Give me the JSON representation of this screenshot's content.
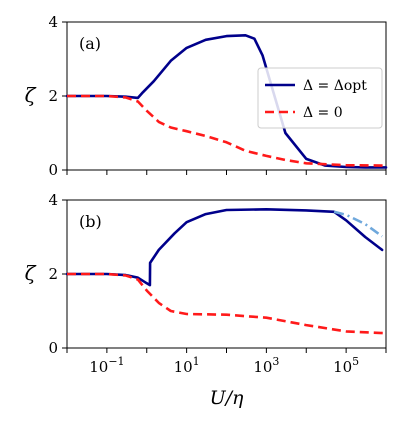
{
  "chart_data": [
    {
      "type": "line",
      "panel_label": "(a)",
      "ylabel": "ζ",
      "xlabel": "",
      "x_scale": "log",
      "xlim": [
        0.01,
        1000000
      ],
      "ylim": [
        0,
        4
      ],
      "yticks": [
        "0",
        "2",
        "4"
      ],
      "legend_position": "center-right",
      "series": [
        {
          "name": "Δ = Δopt",
          "color": "#00008b",
          "style": "solid",
          "x": [
            0.01,
            0.1,
            0.3,
            0.6,
            0.8,
            1.5,
            4,
            10,
            30,
            100,
            300,
            500,
            800,
            1500,
            3000,
            10000,
            30000,
            100000,
            300000,
            1000000
          ],
          "y": [
            2.0,
            2.0,
            1.98,
            1.95,
            2.1,
            2.4,
            2.95,
            3.3,
            3.52,
            3.62,
            3.64,
            3.55,
            3.1,
            2.1,
            1.0,
            0.3,
            0.12,
            0.08,
            0.07,
            0.07
          ]
        },
        {
          "name": "Δ = 0",
          "color": "#ff1a1a",
          "style": "dashed",
          "x": [
            0.01,
            0.1,
            0.3,
            0.6,
            1,
            2,
            4,
            10,
            30,
            100,
            300,
            1000,
            3000,
            10000,
            100000,
            1000000
          ],
          "y": [
            2.0,
            2.0,
            1.96,
            1.85,
            1.6,
            1.3,
            1.15,
            1.05,
            0.92,
            0.75,
            0.52,
            0.38,
            0.27,
            0.18,
            0.13,
            0.12
          ]
        }
      ]
    },
    {
      "type": "line",
      "panel_label": "(b)",
      "ylabel": "ζ",
      "xlabel": "U/η",
      "x_scale": "log",
      "xlim": [
        0.01,
        1000000
      ],
      "ylim": [
        0,
        4
      ],
      "yticks": [
        "0",
        "2",
        "4"
      ],
      "xticks": [
        "10−1",
        "101",
        "103",
        "105"
      ],
      "series": [
        {
          "color": "#00008b",
          "style": "solid",
          "x": [
            0.01,
            0.1,
            0.3,
            0.6,
            1.0,
            1.2,
            1.21,
            2,
            5,
            10,
            30,
            100,
            1000,
            10000,
            50000,
            100000,
            300000,
            800000
          ],
          "y": [
            2.0,
            2.0,
            1.97,
            1.9,
            1.75,
            1.7,
            2.3,
            2.65,
            3.1,
            3.4,
            3.62,
            3.73,
            3.75,
            3.72,
            3.68,
            3.45,
            3.0,
            2.65
          ]
        },
        {
          "color": "#6fa8dc",
          "style": "dashdot",
          "x": [
            50000,
            100000,
            300000,
            800000
          ],
          "y": [
            3.68,
            3.6,
            3.35,
            3.02
          ]
        },
        {
          "color": "#ff1a1a",
          "style": "dashed",
          "x": [
            0.01,
            0.1,
            0.3,
            0.6,
            1,
            2,
            4,
            10,
            100,
            1000,
            10000,
            100000,
            1000000
          ],
          "y": [
            2.0,
            2.0,
            1.96,
            1.85,
            1.55,
            1.22,
            1.0,
            0.92,
            0.9,
            0.82,
            0.62,
            0.45,
            0.4
          ]
        }
      ]
    }
  ]
}
